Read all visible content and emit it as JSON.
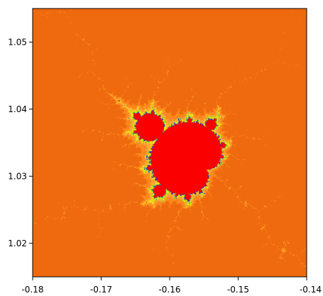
{
  "chart_data": {
    "type": "heatmap",
    "description_kind": "escape-time fractal (Mandelbrot minibrot)",
    "xlim": [
      -0.18,
      -0.14
    ],
    "ylim": [
      1.015,
      1.055
    ],
    "x_ticks": [
      {
        "value": -0.18,
        "label": "-0.18"
      },
      {
        "value": -0.17,
        "label": "-0.17"
      },
      {
        "value": -0.16,
        "label": "-0.16"
      },
      {
        "value": -0.15,
        "label": "-0.15"
      },
      {
        "value": -0.14,
        "label": "-0.14"
      }
    ],
    "y_ticks": [
      {
        "value": 1.02,
        "label": "1.02"
      },
      {
        "value": 1.03,
        "label": "1.03"
      },
      {
        "value": 1.04,
        "label": "1.04"
      },
      {
        "value": 1.05,
        "label": "1.05"
      }
    ],
    "palette": {
      "interior": "#ff0000",
      "far": "#f36d12",
      "outer": "#ff8a1e",
      "mid": "#ffa53a",
      "near": "#ffd21f",
      "edge": "#fff200",
      "boundary_green": "#3ddc3d",
      "boundary_blue": "#1030ff"
    },
    "grid": false,
    "legend": "none"
  }
}
